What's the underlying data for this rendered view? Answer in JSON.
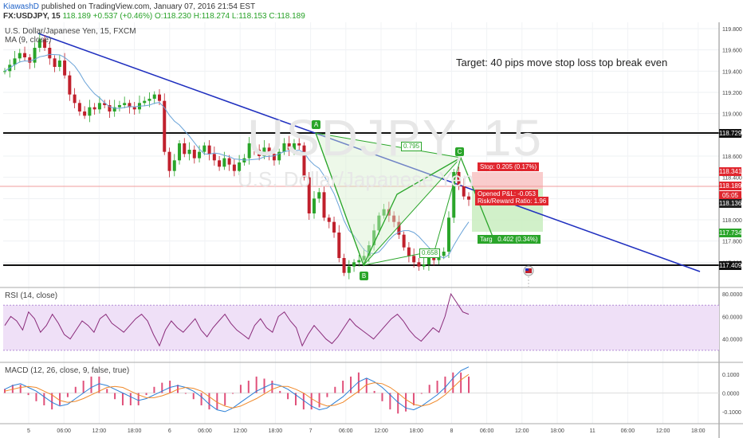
{
  "header": {
    "author": "KiawashD",
    "published": "published on TradingView.com, January 07, 2016 21:54 EST",
    "symbol": "FX:USDJPY, 15",
    "last": "118.189",
    "change": "+0.537 (+0.46%)",
    "ohlc": "O:118.230  H:118.274  L:118.153  C:118.189"
  },
  "main_labels": {
    "instrument": "U.S. Dollar/Japanese Yen, 15, FXCM",
    "ma": "MA (9, close)",
    "note": "Target: 40 pips move stop loss top break even",
    "watermark_symbol": "USDJPY, 15",
    "watermark_name": "U.S. Dollar/Japanese Yen"
  },
  "pattern": {
    "points": [
      "A",
      "B",
      "C",
      "D"
    ],
    "ratios": [
      "0.795",
      "0.658"
    ]
  },
  "position": {
    "stop": "Stop: 0.205 (0.17%)",
    "pnl": "Opened P&L: -0.053",
    "rr": "Risk/Reward Ratio: 1.96",
    "target": "Target: 0.402 (0.34%)",
    "target_short": "Targ",
    "target_tail": "0.402 (0.34%)"
  },
  "price_tags": [
    "118.341",
    "118.189",
    "05:05",
    "118.136",
    "117.734",
    "118.729",
    "117.409"
  ],
  "colors": {
    "up": "#2aa52a",
    "down": "#c0202c",
    "trend": "#1f2fbf",
    "loss": "#f8c6c6",
    "profit": "#c9edc0"
  },
  "chart_data": [
    {
      "type": "candlestick",
      "title": "U.S. Dollar/Japanese Yen, 15, FXCM",
      "x_ticks": [
        "5",
        "06:00",
        "12:00",
        "18:00",
        "6",
        "06:00",
        "12:00",
        "18:00",
        "7",
        "06:00",
        "12:00",
        "18:00",
        "8",
        "06:00",
        "12:00",
        "18:00",
        "11",
        "06:00",
        "12:00",
        "18:00"
      ],
      "y_ticks": [
        119.8,
        119.6,
        119.4,
        119.2,
        119.0,
        118.8,
        118.6,
        118.4,
        118.2,
        118.0,
        117.8,
        117.6
      ],
      "ylim": [
        117.4,
        119.86
      ],
      "close_series": [
        119.4,
        119.46,
        119.52,
        119.57,
        119.53,
        119.48,
        119.62,
        119.7,
        119.62,
        119.52,
        119.44,
        119.5,
        119.36,
        119.18,
        119.1,
        119.02,
        118.98,
        119.06,
        119.04,
        119.1,
        119.08,
        119.02,
        119.06,
        119.08,
        119.1,
        119.06,
        119.04,
        119.1,
        119.12,
        119.14,
        119.18,
        119.12,
        118.64,
        118.46,
        118.56,
        118.72,
        118.62,
        118.66,
        118.58,
        118.64,
        118.7,
        118.62,
        118.56,
        118.5,
        118.58,
        118.52,
        118.46,
        118.54,
        118.58,
        118.72,
        118.66,
        118.6,
        118.68,
        118.62,
        118.56,
        118.64,
        118.72,
        118.66,
        118.72,
        118.7,
        118.4,
        118.06,
        118.2,
        118.26,
        118.02,
        117.98,
        117.88,
        117.64,
        117.5,
        117.56,
        117.6,
        117.62,
        117.66,
        117.76,
        117.9,
        118.04,
        118.1,
        118.04,
        117.98,
        117.86,
        117.74,
        117.66,
        117.6,
        117.56,
        117.58,
        117.64,
        117.62,
        117.66,
        117.7,
        118.02,
        118.45,
        118.32,
        118.22,
        118.19
      ],
      "moving_average": "MA (9, close)",
      "horizontal_levels": [
        118.729,
        117.409
      ],
      "trendline": {
        "from": [
          119.68,
          "5 06:00"
        ],
        "to": [
          117.38,
          "11 18:00"
        ]
      },
      "note": "Target: 40 pips move stop loss top break even"
    },
    {
      "type": "line",
      "title": "RSI (14, close)",
      "y_ticks": [
        80,
        60,
        40
      ],
      "ylim": [
        20,
        85
      ],
      "band": [
        30,
        70
      ],
      "values": [
        52,
        60,
        56,
        48,
        64,
        58,
        46,
        52,
        62,
        54,
        44,
        40,
        48,
        56,
        52,
        46,
        58,
        62,
        54,
        50,
        46,
        52,
        58,
        62,
        56,
        44,
        34,
        48,
        56,
        50,
        46,
        52,
        58,
        48,
        42,
        50,
        56,
        62,
        54,
        48,
        44,
        40,
        52,
        58,
        50,
        46,
        60,
        64,
        56,
        50,
        34,
        44,
        52,
        46,
        40,
        36,
        42,
        50,
        58,
        52,
        48,
        44,
        40,
        46,
        52,
        58,
        62,
        56,
        48,
        42,
        38,
        44,
        50,
        46,
        60,
        80,
        72,
        64,
        62
      ]
    },
    {
      "type": "macd",
      "title": "MACD (12, 26, close, 9, false, true)",
      "y_ticks": [
        0.1,
        0.0,
        -0.1
      ],
      "ylim": [
        -0.16,
        0.16
      ],
      "macd": [
        0.02,
        0.04,
        0.05,
        0.03,
        0.01,
        -0.02,
        -0.05,
        -0.07,
        -0.06,
        -0.03,
        0.0,
        0.03,
        0.05,
        0.04,
        0.02,
        0.0,
        -0.02,
        -0.04,
        -0.03,
        -0.01,
        0.01,
        0.03,
        0.04,
        0.03,
        0.01,
        -0.02,
        -0.06,
        -0.09,
        -0.1,
        -0.08,
        -0.05,
        -0.02,
        0.01,
        0.03,
        0.05,
        0.04,
        0.02,
        -0.01,
        -0.04,
        -0.07,
        -0.09,
        -0.08,
        -0.05,
        -0.02,
        0.02,
        0.06,
        0.08,
        0.06,
        0.03,
        -0.01,
        -0.05,
        -0.08,
        -0.09,
        -0.07,
        -0.04,
        -0.01,
        0.03,
        0.08,
        0.12,
        0.14
      ],
      "signal": [
        0.01,
        0.02,
        0.03,
        0.035,
        0.03,
        0.01,
        -0.01,
        -0.04,
        -0.05,
        -0.045,
        -0.03,
        -0.01,
        0.01,
        0.03,
        0.035,
        0.03,
        0.01,
        -0.01,
        -0.025,
        -0.025,
        -0.015,
        0.0,
        0.02,
        0.03,
        0.025,
        0.01,
        -0.02,
        -0.05,
        -0.07,
        -0.08,
        -0.07,
        -0.05,
        -0.03,
        -0.005,
        0.02,
        0.035,
        0.035,
        0.02,
        0.0,
        -0.03,
        -0.055,
        -0.07,
        -0.065,
        -0.05,
        -0.02,
        0.01,
        0.045,
        0.055,
        0.05,
        0.03,
        0.0,
        -0.035,
        -0.06,
        -0.07,
        -0.06,
        -0.04,
        -0.01,
        0.03,
        0.07,
        0.1
      ]
    }
  ]
}
